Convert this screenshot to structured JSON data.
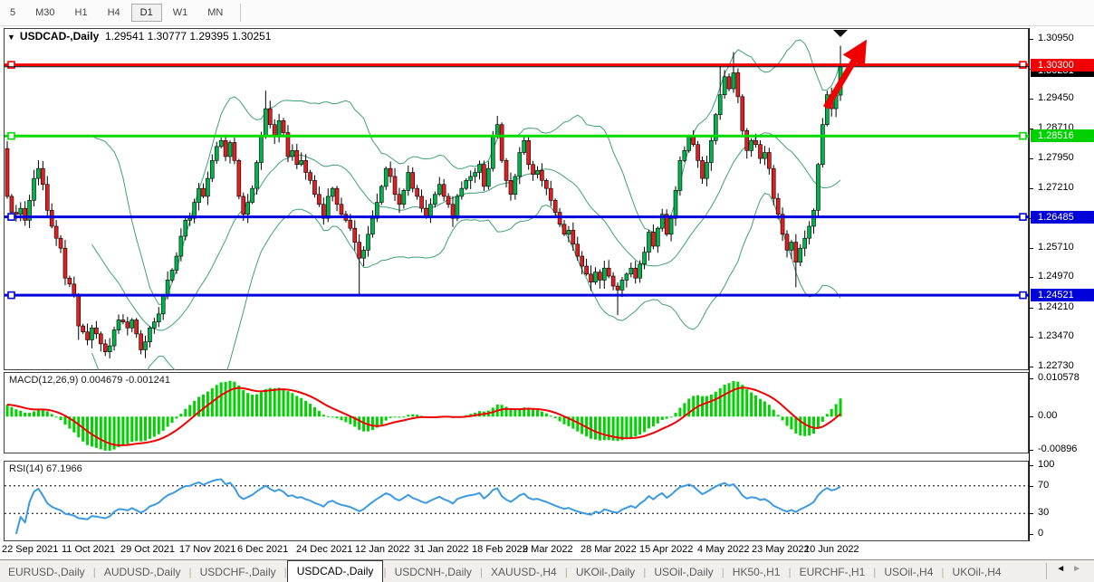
{
  "toolbar": {
    "buttons": [
      "5",
      "M30",
      "H1",
      "H4",
      "D1",
      "W1",
      "MN"
    ],
    "active": "D1"
  },
  "title": {
    "dropdown_icon": "▼",
    "symbol": "USDCAD-,Daily",
    "ohlc": "1.29541 1.30777 1.29395 1.30251"
  },
  "price_axis": {
    "ticks": [
      1.3095,
      1.3021,
      1.2945,
      1.2871,
      1.2795,
      1.2721,
      1.2645,
      1.2571,
      1.2497,
      1.2421,
      1.2347,
      1.2273
    ]
  },
  "hlines": [
    {
      "price": 1.303,
      "label": "1.30300",
      "color": "#f00000",
      "width": 3,
      "badge": "#f00000",
      "handles": true
    },
    {
      "price": 1.30251,
      "label": "1.30251",
      "color": "#000000",
      "width": 1,
      "badge": "#000000",
      "handles": false
    },
    {
      "price": 1.28516,
      "label": "1.28516",
      "color": "#00dc00",
      "width": 3,
      "badge": "#00d000",
      "handles": true
    },
    {
      "price": 1.26485,
      "label": "1.26485",
      "color": "#0000dc",
      "width": 3,
      "badge": "#0000d8",
      "handles": true
    },
    {
      "price": 1.24521,
      "label": "1.24521",
      "color": "#0000dc",
      "width": 3,
      "badge": "#0000d8",
      "handles": true
    }
  ],
  "chart_data": {
    "type": "candlestick",
    "symbol": "USDCAD",
    "timeframe": "Daily",
    "y_axis": {
      "top_price": 1.3095,
      "bottom_price": 1.2273
    },
    "open_first": 1.282,
    "closes": [
      1.27,
      1.266,
      1.2655,
      1.267,
      1.264,
      1.269,
      1.2745,
      1.277,
      1.273,
      1.2665,
      1.2625,
      1.2595,
      1.257,
      1.2495,
      1.248,
      1.245,
      1.2375,
      1.236,
      1.234,
      1.237,
      1.2355,
      1.233,
      1.231,
      1.2325,
      1.2365,
      1.239,
      1.2385,
      1.237,
      1.239,
      1.2355,
      1.2315,
      1.2335,
      1.237,
      1.2385,
      1.2405,
      1.245,
      1.249,
      1.2515,
      1.255,
      1.26,
      1.264,
      1.2645,
      1.2685,
      1.272,
      1.27,
      1.2745,
      1.279,
      1.2825,
      1.284,
      1.28,
      1.2835,
      1.279,
      1.27,
      1.2655,
      1.2685,
      1.272,
      1.2785,
      1.285,
      1.292,
      1.288,
      1.285,
      1.289,
      1.286,
      1.28,
      1.2815,
      1.278,
      1.279,
      1.276,
      1.274,
      1.2705,
      1.268,
      1.2645,
      1.27,
      1.272,
      1.268,
      1.2655,
      1.264,
      1.262,
      1.2585,
      1.2545,
      1.2565,
      1.2605,
      1.2645,
      1.2685,
      1.2725,
      1.277,
      1.275,
      1.2705,
      1.268,
      1.2715,
      1.276,
      1.272,
      1.27,
      1.267,
      1.265,
      1.268,
      1.2705,
      1.273,
      1.27,
      1.268,
      1.2645,
      1.27,
      1.272,
      1.274,
      1.275,
      1.276,
      1.278,
      1.2725,
      1.277,
      1.285,
      1.288,
      1.279,
      1.274,
      1.2705,
      1.275,
      1.281,
      1.284,
      1.278,
      1.2755,
      1.2765,
      1.274,
      1.272,
      1.269,
      1.266,
      1.263,
      1.2605,
      1.2615,
      1.258,
      1.255,
      1.2525,
      1.2505,
      1.2485,
      1.251,
      1.249,
      1.252,
      1.25,
      1.2475,
      1.2465,
      1.249,
      1.2505,
      1.252,
      1.2495,
      1.253,
      1.256,
      1.261,
      1.2575,
      1.262,
      1.2655,
      1.2605,
      1.2645,
      1.2715,
      1.279,
      1.2815,
      1.285,
      1.283,
      1.279,
      1.2745,
      1.2785,
      1.284,
      1.2905,
      1.2955,
      1.3,
      1.297,
      1.301,
      1.295,
      1.2865,
      1.2815,
      1.284,
      1.283,
      1.2795,
      1.281,
      1.277,
      1.2695,
      1.2655,
      1.2605,
      1.2565,
      1.2585,
      1.2535,
      1.257,
      1.2595,
      1.2625,
      1.2665,
      1.278,
      1.288,
      1.2955,
      1.292,
      1.2954,
      1.30251
    ],
    "wick_overrides": {
      "16": {
        "low": 1.234
      },
      "58": {
        "high": 1.2965
      },
      "79": {
        "low": 1.2452
      },
      "110": {
        "high": 1.2902
      },
      "137": {
        "low": 1.2402
      },
      "160": {
        "high": 1.3032
      },
      "163": {
        "high": 1.3062
      },
      "177": {
        "low": 1.2472
      }
    },
    "last_candle": {
      "open": 1.29541,
      "high": 1.30777,
      "low": 1.29395,
      "close": 1.30251
    },
    "indicators": {
      "bollinger": {
        "period": 20,
        "deviation": 2
      },
      "macd": {
        "fast": 12,
        "slow": 26,
        "signal": 9
      },
      "rsi": {
        "period": 14
      }
    }
  },
  "macd_panel": {
    "label": "MACD(12,26,9)",
    "values": "0.004679 -0.001241",
    "axis": [
      "0.010578",
      "0.00",
      "-0.00896"
    ]
  },
  "rsi_panel": {
    "label": "RSI(14)",
    "value": "67.1966",
    "axis": [
      "100",
      "70",
      "30",
      "0"
    ],
    "levels": [
      70,
      30
    ]
  },
  "date_axis": {
    "labels": [
      "22 Sep 2021",
      "11 Oct 2021",
      "29 Oct 2021",
      "17 Nov 2021",
      "6 Dec 2021",
      "24 Dec 2021",
      "12 Jan 2022",
      "31 Jan 2022",
      "18 Feb 2022",
      "9 Mar 2022",
      "28 Mar 2022",
      "15 Apr 2022",
      "4 May 2022",
      "23 May 2022",
      "10 Jun 2022"
    ]
  },
  "tabs": {
    "items": [
      "EURUSD-,Daily",
      "AUDUSD-,Daily",
      "USDCHF-,Daily",
      "USDCAD-,Daily",
      "USDCNH-,Daily",
      "XAUUSD-,H4",
      "UKOil-,Daily",
      "USOil-,Daily",
      "HK50-,H1",
      "EURCHF-,H1",
      "USOil-,H4",
      "UKOil-,H4"
    ],
    "active": "USDCAD-,Daily",
    "scroll_left_icon": "◄",
    "scroll_right_icon": "►"
  },
  "annotations": {
    "up_arrow_color": "#f00000",
    "bar_marker": "down-triangle"
  },
  "colors": {
    "bull": "#00b44c",
    "bear": "#e02020",
    "wick": "#000000",
    "bollinger": "#3fa173",
    "macd_hist": "#00d200",
    "macd_signal": "#f00000",
    "rsi_line": "#3b9ae1",
    "panel_border": "#404040"
  }
}
